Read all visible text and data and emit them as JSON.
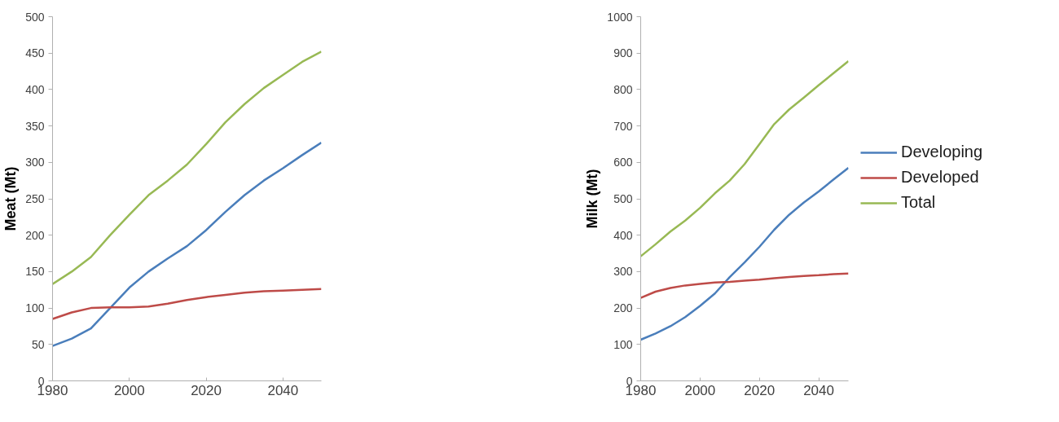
{
  "chart_data": [
    {
      "type": "line",
      "ylabel": "Meat (Mt)",
      "x": [
        1980,
        1985,
        1990,
        1995,
        2000,
        2005,
        2010,
        2015,
        2020,
        2025,
        2030,
        2035,
        2040,
        2045,
        2050
      ],
      "xlim": [
        1980,
        2050
      ],
      "xticks": [
        1980,
        2000,
        2020,
        2040
      ],
      "ylim": [
        0,
        500
      ],
      "yticks": [
        0,
        50,
        100,
        150,
        200,
        250,
        300,
        350,
        400,
        450,
        500
      ],
      "grid": false,
      "legend": false,
      "marker": "none",
      "line_style": "solid",
      "series": [
        {
          "color": "#4a7ebb",
          "values": [
            48,
            58,
            72,
            100,
            128,
            150,
            168,
            185,
            207,
            232,
            255,
            275,
            292,
            310,
            327
          ]
        },
        {
          "color": "#be4b48",
          "values": [
            85,
            94,
            100,
            101,
            101,
            102,
            106,
            111,
            115,
            118,
            121,
            123,
            124,
            125,
            126
          ]
        },
        {
          "color": "#98b954",
          "values": [
            133,
            150,
            170,
            200,
            228,
            255,
            275,
            297,
            325,
            355,
            380,
            402,
            420,
            438,
            452
          ]
        }
      ]
    },
    {
      "type": "line",
      "ylabel": "Milk (Mt)",
      "x": [
        1980,
        1985,
        1990,
        1995,
        2000,
        2005,
        2010,
        2015,
        2020,
        2025,
        2030,
        2035,
        2040,
        2045,
        2050
      ],
      "xlim": [
        1980,
        2050
      ],
      "xticks": [
        1980,
        2000,
        2020,
        2040
      ],
      "ylim": [
        0,
        1000
      ],
      "yticks": [
        0,
        100,
        200,
        300,
        400,
        500,
        600,
        700,
        800,
        900,
        1000
      ],
      "grid": false,
      "legend": "right",
      "marker": "none",
      "line_style": "solid",
      "series": [
        {
          "name": "Developing",
          "color": "#4a7ebb",
          "values": [
            113,
            130,
            150,
            175,
            206,
            240,
            285,
            325,
            368,
            415,
            456,
            490,
            520,
            553,
            585
          ]
        },
        {
          "name": "Developed",
          "color": "#be4b48",
          "values": [
            228,
            245,
            255,
            262,
            266,
            270,
            272,
            275,
            278,
            282,
            285,
            288,
            290,
            293,
            295
          ]
        },
        {
          "name": "Total",
          "color": "#98b954",
          "values": [
            342,
            375,
            410,
            440,
            475,
            515,
            550,
            595,
            650,
            705,
            745,
            778,
            812,
            845,
            878
          ]
        }
      ]
    }
  ]
}
